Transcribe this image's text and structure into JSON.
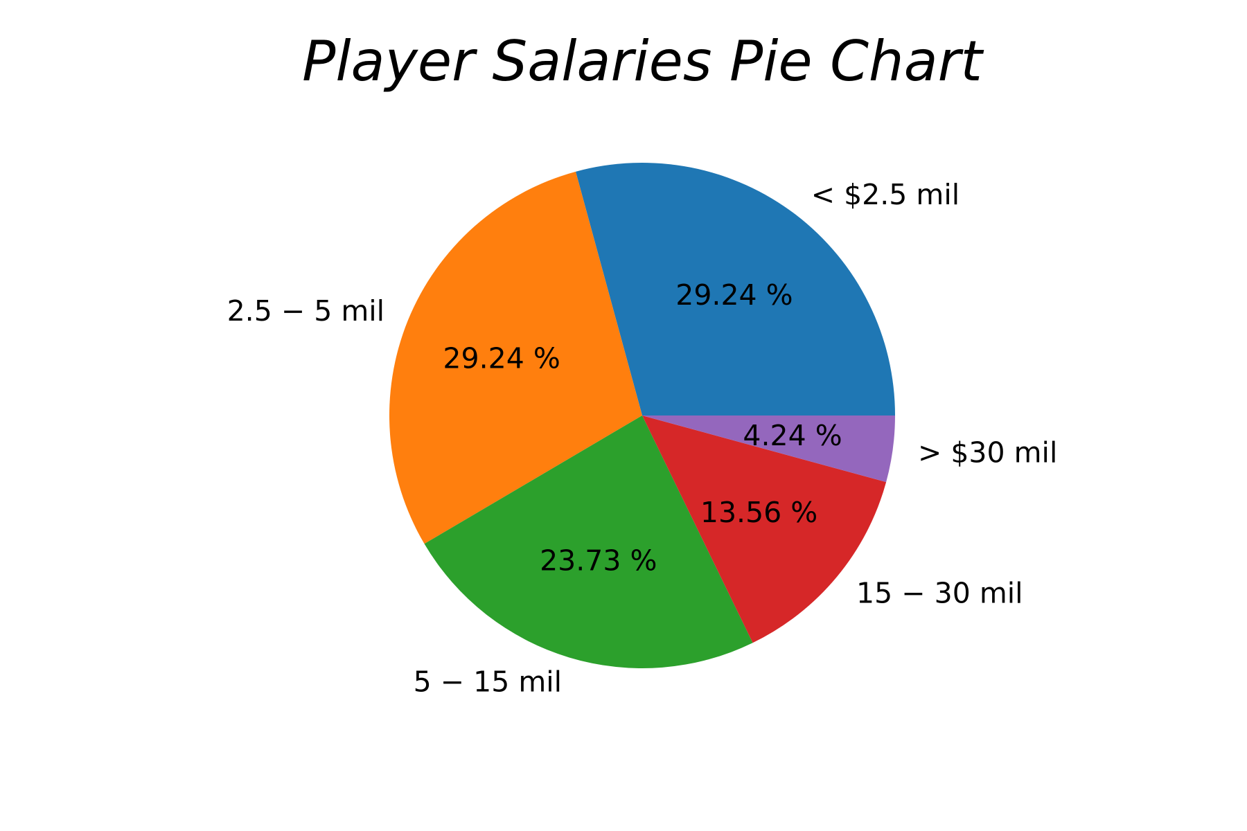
{
  "chart_data": {
    "type": "pie",
    "title": "Player Salaries Pie Chart",
    "start_angle_deg": 0,
    "direction": "counterclockwise",
    "slices": [
      {
        "label": "< $2.5 mil",
        "value": 29.24,
        "pct_text": "29.24 %",
        "color": "#1f77b4"
      },
      {
        "label": "2.5 − 5 mil",
        "value": 29.24,
        "pct_text": "29.24 %",
        "color": "#ff7f0e"
      },
      {
        "label": "5 − 15 mil",
        "value": 23.73,
        "pct_text": "23.73 %",
        "color": "#2ca02c"
      },
      {
        "label": "15 − 30 mil",
        "value": 13.56,
        "pct_text": "13.56 %",
        "color": "#d62728"
      },
      {
        "label": "> $30 mil",
        "value": 4.24,
        "pct_text": "4.24 %",
        "color": "#9467bd"
      }
    ]
  }
}
